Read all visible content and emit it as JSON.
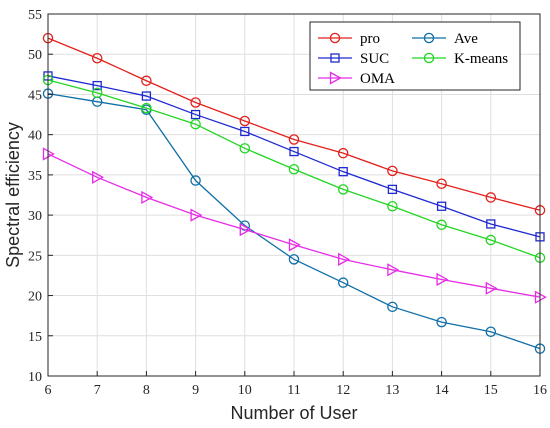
{
  "chart_data": {
    "type": "line",
    "title": "",
    "xlabel": "Number of User",
    "ylabel": "Spectral efficiency",
    "x": [
      6,
      7,
      8,
      9,
      10,
      11,
      12,
      13,
      14,
      15,
      16
    ],
    "xlim": [
      6,
      16
    ],
    "ylim": [
      10,
      55
    ],
    "xticks": [
      6,
      7,
      8,
      9,
      10,
      11,
      12,
      13,
      14,
      15,
      16
    ],
    "yticks": [
      10,
      15,
      20,
      25,
      30,
      35,
      40,
      45,
      50,
      55
    ],
    "grid": true,
    "legend_position": "top-right",
    "series": [
      {
        "name": "pro",
        "color": "#e3211c",
        "marker": "circle",
        "values": [
          52.0,
          49.5,
          46.7,
          44.0,
          41.7,
          39.4,
          37.7,
          35.5,
          33.9,
          32.2,
          30.6
        ]
      },
      {
        "name": "Ave",
        "color": "#0f6fa8",
        "marker": "circle",
        "values": [
          45.1,
          44.1,
          43.1,
          34.3,
          28.7,
          24.5,
          21.6,
          18.6,
          16.7,
          15.5,
          13.4
        ]
      },
      {
        "name": "SUC",
        "color": "#1f2bd1",
        "marker": "square",
        "values": [
          47.3,
          46.1,
          44.8,
          42.5,
          40.4,
          37.9,
          35.4,
          33.2,
          31.1,
          28.9,
          27.3
        ]
      },
      {
        "name": "K-means",
        "color": "#22d622",
        "marker": "circle",
        "values": [
          46.8,
          45.2,
          43.3,
          41.3,
          38.3,
          35.7,
          33.2,
          31.1,
          28.8,
          26.9,
          24.7
        ]
      },
      {
        "name": "OMA",
        "color": "#e62ce6",
        "marker": "triangle-right",
        "values": [
          37.6,
          34.7,
          32.2,
          30.0,
          28.2,
          26.3,
          24.5,
          23.2,
          22.0,
          20.9,
          19.8
        ]
      }
    ]
  }
}
